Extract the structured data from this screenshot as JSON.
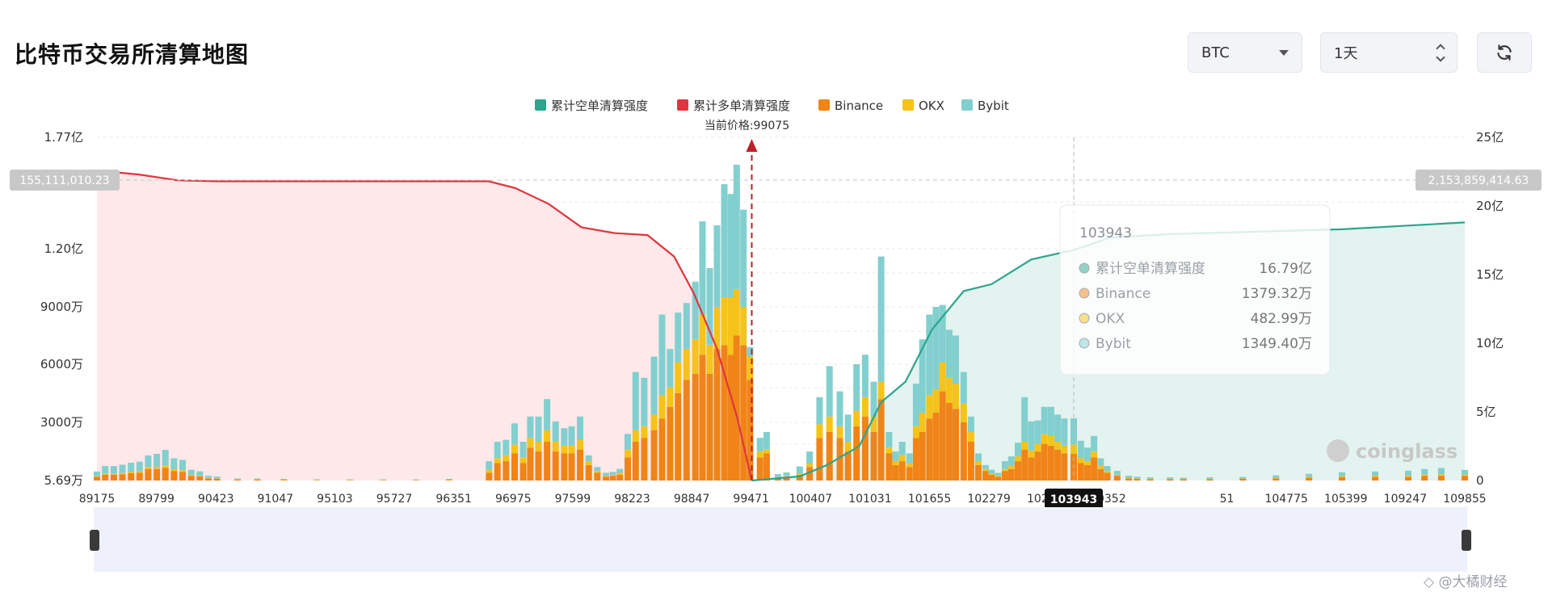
{
  "header": {
    "title": "比特币交易所清算地图",
    "symbol_select": "BTC",
    "timeframe_select": "1天"
  },
  "colors": {
    "short_cum": "#2ca58d",
    "long_cum": "#e0353f",
    "binance": "#f08418",
    "okx": "#f5c31a",
    "bybit": "#82cfcf"
  },
  "chart_data": {
    "type": "bar",
    "legend": {
      "placement": "top-center",
      "items": [
        "累计空单清算强度",
        "累计多单清算强度",
        "Binance",
        "OKX",
        "Bybit"
      ]
    },
    "current_price_label": "当前价格:99075",
    "current_price": 99075,
    "x_range": [
      89175,
      109855
    ],
    "x_ticks": [
      "89175",
      "89799",
      "90423",
      "91047",
      "95103",
      "95727",
      "96351",
      "96975",
      "97599",
      "98223",
      "98847",
      "99471",
      "100407",
      "101031",
      "101655",
      "102279",
      "102903",
      "10352",
      "103943",
      "51",
      "104775",
      "105399",
      "109247",
      "109855"
    ],
    "left_axis": {
      "ticks": [
        "5.69万",
        "3000万",
        "6000万",
        "9000万",
        "1.20亿",
        "1.77亿"
      ],
      "tick_values": [
        56900,
        30000000,
        60000000,
        90000000,
        120000000,
        177000000
      ],
      "range": [
        56900,
        177000000
      ],
      "highlight_label": "155,111,010.23",
      "highlight_value": 155111010.23
    },
    "right_axis": {
      "ticks": [
        "0",
        "5亿",
        "10亿",
        "15亿",
        "20亿",
        "25亿"
      ],
      "tick_values": [
        0,
        500000000,
        1000000000,
        1500000000,
        2000000000,
        2500000000
      ],
      "range": [
        0,
        2500000000
      ],
      "highlight_label": "2,153,859,414.63",
      "highlight_value": 2153859414.63
    },
    "hover": {
      "price_label": "103943",
      "price": 103943,
      "tooltip_title": "103943",
      "rows": [
        {
          "name": "累计空单清算强度",
          "value": "16.79亿"
        },
        {
          "name": "Binance",
          "value": "1379.32万"
        },
        {
          "name": "OKX",
          "value": "482.99万"
        },
        {
          "name": "Bybit",
          "value": "1349.40万"
        }
      ]
    },
    "brand": "coinglass",
    "long_cum_curve": [
      [
        89175,
        160000000
      ],
      [
        89800,
        158000000
      ],
      [
        90400,
        155000000
      ],
      [
        91000,
        154500000
      ],
      [
        95100,
        154500000
      ],
      [
        95500,
        151000000
      ],
      [
        96000,
        143000000
      ],
      [
        96500,
        131000000
      ],
      [
        97000,
        128000000
      ],
      [
        97500,
        127000000
      ],
      [
        97900,
        116000000
      ],
      [
        98200,
        97000000
      ],
      [
        98550,
        68000000
      ],
      [
        98850,
        33000000
      ],
      [
        99075,
        0
      ]
    ],
    "short_cum_curve": [
      [
        99075,
        0
      ],
      [
        99800,
        30000000
      ],
      [
        100200,
        110000000
      ],
      [
        100700,
        250000000
      ],
      [
        101031,
        570000000
      ],
      [
        101400,
        720000000
      ],
      [
        101800,
        1100000000
      ],
      [
        102279,
        1380000000
      ],
      [
        102700,
        1430000000
      ],
      [
        103300,
        1610000000
      ],
      [
        103943,
        1679000000
      ],
      [
        104500,
        1770000000
      ],
      [
        105400,
        1795000000
      ],
      [
        106500,
        1810000000
      ],
      [
        108000,
        1830000000
      ],
      [
        109855,
        1880000000
      ]
    ],
    "bars": [
      [
        89175,
        2000000,
        300000,
        2400000
      ],
      [
        89300,
        3000000,
        500000,
        4000000
      ],
      [
        89430,
        3000000,
        500000,
        4000000
      ],
      [
        89560,
        3300000,
        600000,
        4300000
      ],
      [
        89690,
        3800000,
        700000,
        4700000
      ],
      [
        89820,
        4000000,
        800000,
        5000000
      ],
      [
        89950,
        6000000,
        1000000,
        6000000
      ],
      [
        90080,
        6000000,
        1200000,
        6600000
      ],
      [
        90210,
        6500000,
        1300000,
        8000000
      ],
      [
        90340,
        5000000,
        900000,
        5600000
      ],
      [
        90470,
        4500000,
        900000,
        5300000
      ],
      [
        90600,
        2500000,
        400000,
        2700000
      ],
      [
        90730,
        2200000,
        300000,
        2300000
      ],
      [
        90860,
        1200000,
        200000,
        1100000
      ],
      [
        90990,
        1000000,
        200000,
        900000
      ],
      [
        91300,
        500000,
        100000,
        500000
      ],
      [
        91600,
        500000,
        100000,
        500000
      ],
      [
        92000,
        400000,
        100000,
        400000
      ],
      [
        92500,
        300000,
        50000,
        300000
      ],
      [
        93000,
        300000,
        50000,
        300000
      ],
      [
        93500,
        300000,
        50000,
        300000
      ],
      [
        94000,
        300000,
        50000,
        300000
      ],
      [
        94500,
        400000,
        100000,
        400000
      ],
      [
        95103,
        4000000,
        1500000,
        4500000
      ],
      [
        95230,
        9000000,
        2500000,
        8500000
      ],
      [
        95360,
        10000000,
        3000000,
        8000000
      ],
      [
        95490,
        14000000,
        4500000,
        11000000
      ],
      [
        95620,
        9000000,
        3000000,
        8000000
      ],
      [
        95727,
        17000000,
        5000000,
        11000000
      ],
      [
        95850,
        15000000,
        5000000,
        13000000
      ],
      [
        95980,
        20000000,
        6000000,
        16000000
      ],
      [
        96110,
        15000000,
        5000000,
        10500000
      ],
      [
        96240,
        14000000,
        4000000,
        9000000
      ],
      [
        96351,
        14000000,
        4000000,
        10000000
      ],
      [
        96480,
        16000000,
        5000000,
        12000000
      ],
      [
        96610,
        8000000,
        2000000,
        3000000
      ],
      [
        96740,
        4000000,
        1000000,
        2000000
      ],
      [
        96870,
        2000000,
        500000,
        1500000
      ],
      [
        96975,
        2500000,
        500000,
        1500000
      ],
      [
        97080,
        3000000,
        1000000,
        2000000
      ],
      [
        97200,
        12000000,
        4000000,
        8000000
      ],
      [
        97320,
        20000000,
        6000000,
        30000000
      ],
      [
        97450,
        22000000,
        6000000,
        25000000
      ],
      [
        97599,
        26000000,
        8000000,
        30000000
      ],
      [
        97720,
        32000000,
        12000000,
        42000000
      ],
      [
        97840,
        38000000,
        10000000,
        20000000
      ],
      [
        97960,
        45000000,
        16000000,
        26000000
      ],
      [
        98090,
        52000000,
        16000000,
        24000000
      ],
      [
        98223,
        55000000,
        18000000,
        30000000
      ],
      [
        98330,
        65000000,
        21000000,
        48000000
      ],
      [
        98440,
        55000000,
        15000000,
        40000000
      ],
      [
        98550,
        68000000,
        22000000,
        42000000
      ],
      [
        98660,
        70000000,
        25000000,
        58000000
      ],
      [
        98760,
        65000000,
        30000000,
        53000000
      ],
      [
        98847,
        75000000,
        24000000,
        64000000
      ],
      [
        98950,
        70000000,
        20000000,
        50000000
      ],
      [
        99050,
        52000000,
        12000000,
        5000000
      ],
      [
        99200,
        12000000,
        3000000,
        7000000
      ],
      [
        99300,
        14000000,
        2000000,
        9000000
      ],
      [
        99471,
        1500000,
        300000,
        1500000
      ],
      [
        99600,
        2000000,
        400000,
        1800000
      ],
      [
        99800,
        3000000,
        800000,
        3500000
      ],
      [
        99950,
        7000000,
        2000000,
        6000000
      ],
      [
        100100,
        22000000,
        7000000,
        14000000
      ],
      [
        100250,
        25000000,
        8000000,
        26000000
      ],
      [
        100407,
        22000000,
        6000000,
        18000000
      ],
      [
        100530,
        15000000,
        5000000,
        14000000
      ],
      [
        100660,
        28000000,
        8000000,
        24000000
      ],
      [
        100790,
        33000000,
        10000000,
        22000000
      ],
      [
        100920,
        25000000,
        8000000,
        18000000
      ],
      [
        101031,
        42000000,
        9000000,
        65000000
      ],
      [
        101150,
        14000000,
        3000000,
        8000000
      ],
      [
        101250,
        8000000,
        2000000,
        5000000
      ],
      [
        101350,
        10000000,
        3000000,
        7000000
      ],
      [
        101460,
        7000000,
        2000000,
        5000000
      ],
      [
        101560,
        22000000,
        6000000,
        22000000
      ],
      [
        101655,
        25000000,
        10000000,
        38000000
      ],
      [
        101760,
        32000000,
        12000000,
        42000000
      ],
      [
        101860,
        35000000,
        12000000,
        43000000
      ],
      [
        101960,
        46000000,
        15000000,
        30000000
      ],
      [
        102060,
        40000000,
        13000000,
        25000000
      ],
      [
        102160,
        37000000,
        13000000,
        25000000
      ],
      [
        102279,
        30000000,
        10000000,
        16000000
      ],
      [
        102390,
        20000000,
        5000000,
        8000000
      ],
      [
        102500,
        8000000,
        2000000,
        4000000
      ],
      [
        102610,
        5000000,
        1000000,
        2000000
      ],
      [
        102700,
        3000000,
        600000,
        2000000
      ],
      [
        102800,
        2000000,
        500000,
        1500000
      ],
      [
        102903,
        5000000,
        1000000,
        4000000
      ],
      [
        103000,
        6000000,
        1500000,
        5000000
      ],
      [
        103100,
        10000000,
        2500000,
        7000000
      ],
      [
        103200,
        16000000,
        4000000,
        23000000
      ],
      [
        103300,
        12000000,
        3500000,
        15000000
      ],
      [
        103400,
        15000000,
        4000000,
        12000000
      ],
      [
        103500,
        19000000,
        5000000,
        14000000
      ],
      [
        103600,
        18000000,
        5000000,
        15000000
      ],
      [
        103700,
        16000000,
        4000000,
        14000000
      ],
      [
        103800,
        14000000,
        4000000,
        14000000
      ],
      [
        103943,
        13790000,
        4830000,
        13490000
      ],
      [
        104050,
        9000000,
        2500000,
        9000000
      ],
      [
        104150,
        8000000,
        2000000,
        7000000
      ],
      [
        104250,
        12000000,
        3000000,
        8000000
      ],
      [
        104350,
        6000000,
        1500000,
        4000000
      ],
      [
        104450,
        4000000,
        1000000,
        2500000
      ],
      [
        104600,
        2500000,
        500000,
        2000000
      ],
      [
        104775,
        1200000,
        300000,
        1000000
      ],
      [
        104900,
        1000000,
        200000,
        800000
      ],
      [
        105100,
        800000,
        200000,
        700000
      ],
      [
        105399,
        700000,
        200000,
        800000
      ],
      [
        105600,
        700000,
        200000,
        600000
      ],
      [
        106000,
        800000,
        200000,
        700000
      ],
      [
        106500,
        900000,
        200000,
        800000
      ],
      [
        107000,
        1200000,
        300000,
        1200000
      ],
      [
        107500,
        1500000,
        400000,
        1600000
      ],
      [
        108000,
        1800000,
        500000,
        2000000
      ],
      [
        108500,
        2000000,
        500000,
        2200000
      ],
      [
        109000,
        2000000,
        600000,
        2500000
      ],
      [
        109247,
        2500000,
        600000,
        2800000
      ],
      [
        109500,
        2500000,
        800000,
        3200000
      ],
      [
        109855,
        2500000,
        600000,
        2400000
      ]
    ]
  }
}
